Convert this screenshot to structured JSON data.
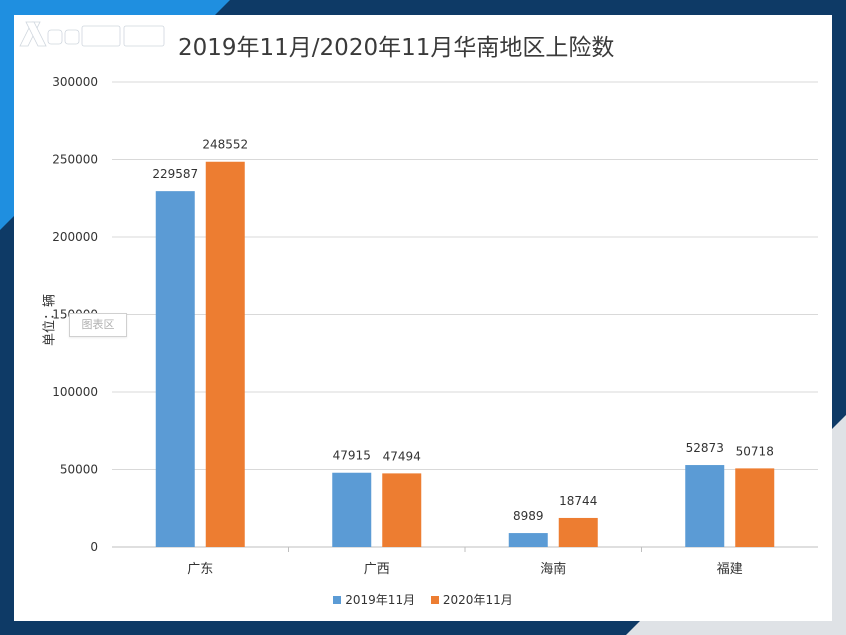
{
  "watermark_text": "图表区",
  "chart_data": {
    "type": "bar",
    "title": "2019年11月/2020年11月华南地区上险数",
    "ylabel": "单位：辆",
    "xlabel": "",
    "categories": [
      "广东",
      "广西",
      "海南",
      "福建"
    ],
    "series": [
      {
        "name": "2019年11月",
        "color": "#5b9bd5",
        "values": [
          229587,
          47915,
          8989,
          52873
        ]
      },
      {
        "name": "2020年11月",
        "color": "#ed7d31",
        "values": [
          248552,
          47494,
          18744,
          50718
        ]
      }
    ],
    "ylim": [
      0,
      300000
    ],
    "yticks": [
      "0",
      "50000",
      "100000",
      "150000",
      "200000",
      "250000",
      "300000"
    ],
    "grid": true,
    "legend": "bottom"
  }
}
